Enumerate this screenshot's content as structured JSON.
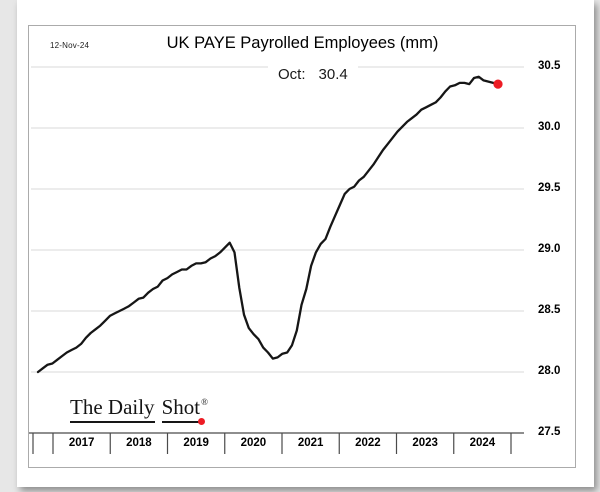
{
  "page": {
    "date_label": "12-Nov-24"
  },
  "logo": {
    "part1": "The Daily",
    "part2": "Shot",
    "reg": "®",
    "dot_color": "#ed1c24"
  },
  "chart_data": {
    "type": "line",
    "title": "UK PAYE Payrolled Employees (mm)",
    "annotation": {
      "label": "Oct:",
      "value": "30.4"
    },
    "ylabel": "",
    "xlabel": "",
    "ylim": [
      27.5,
      30.5
    ],
    "grid": "horizontal",
    "legend": "none",
    "grid_color": "#d9d9d9",
    "axis_color": "#4a4a4a",
    "line_color": "#161616",
    "marker_color": "#ed1c24",
    "last_point_marker": true,
    "y_ticks": [
      30.5,
      30.0,
      29.5,
      29.0,
      28.5,
      28.0,
      27.5
    ],
    "y_tick_labels": [
      "30.5",
      "30.0",
      "29.5",
      "29.0",
      "28.5",
      "28.0",
      "27.5"
    ],
    "x_tick_labels": [
      "2017",
      "2018",
      "2019",
      "2020",
      "2021",
      "2022",
      "2023",
      "2024"
    ],
    "x": [
      "2016-10",
      "2016-11",
      "2016-12",
      "2017-01",
      "2017-02",
      "2017-03",
      "2017-04",
      "2017-05",
      "2017-06",
      "2017-07",
      "2017-08",
      "2017-09",
      "2017-10",
      "2017-11",
      "2017-12",
      "2018-01",
      "2018-02",
      "2018-03",
      "2018-04",
      "2018-05",
      "2018-06",
      "2018-07",
      "2018-08",
      "2018-09",
      "2018-10",
      "2018-11",
      "2018-12",
      "2019-01",
      "2019-02",
      "2019-03",
      "2019-04",
      "2019-05",
      "2019-06",
      "2019-07",
      "2019-08",
      "2019-09",
      "2019-10",
      "2019-11",
      "2019-12",
      "2020-01",
      "2020-02",
      "2020-03",
      "2020-04",
      "2020-05",
      "2020-06",
      "2020-07",
      "2020-08",
      "2020-09",
      "2020-10",
      "2020-11",
      "2020-12",
      "2021-01",
      "2021-02",
      "2021-03",
      "2021-04",
      "2021-05",
      "2021-06",
      "2021-07",
      "2021-08",
      "2021-09",
      "2021-10",
      "2021-11",
      "2021-12",
      "2022-01",
      "2022-02",
      "2022-03",
      "2022-04",
      "2022-05",
      "2022-06",
      "2022-07",
      "2022-08",
      "2022-09",
      "2022-10",
      "2022-11",
      "2022-12",
      "2023-01",
      "2023-02",
      "2023-03",
      "2023-04",
      "2023-05",
      "2023-06",
      "2023-07",
      "2023-08",
      "2023-09",
      "2023-10",
      "2023-11",
      "2023-12",
      "2024-01",
      "2024-02",
      "2024-03",
      "2024-04",
      "2024-05",
      "2024-06",
      "2024-07",
      "2024-08",
      "2024-09",
      "2024-10"
    ],
    "series": [
      {
        "name": "UK PAYE Payrolled Employees (mm)",
        "values": [
          28.0,
          28.03,
          28.06,
          28.07,
          28.1,
          28.13,
          28.16,
          28.18,
          28.2,
          28.23,
          28.28,
          28.32,
          28.35,
          28.38,
          28.42,
          28.46,
          28.48,
          28.5,
          28.52,
          28.54,
          28.57,
          28.6,
          28.61,
          28.65,
          28.68,
          28.7,
          28.75,
          28.77,
          28.8,
          28.82,
          28.84,
          28.84,
          28.87,
          28.89,
          28.89,
          28.9,
          28.93,
          28.95,
          28.98,
          29.02,
          29.06,
          28.98,
          28.69,
          28.47,
          28.36,
          28.31,
          28.27,
          28.2,
          28.16,
          28.11,
          28.12,
          28.15,
          28.16,
          28.22,
          28.34,
          28.55,
          28.68,
          28.87,
          28.98,
          29.05,
          29.09,
          29.19,
          29.28,
          29.37,
          29.46,
          29.5,
          29.52,
          29.57,
          29.6,
          29.65,
          29.7,
          29.76,
          29.82,
          29.87,
          29.92,
          29.97,
          30.01,
          30.05,
          30.08,
          30.11,
          30.15,
          30.17,
          30.19,
          30.21,
          30.25,
          30.3,
          30.34,
          30.35,
          30.37,
          30.37,
          30.36,
          30.41,
          30.42,
          30.39,
          30.38,
          30.37,
          30.36
        ]
      }
    ]
  }
}
